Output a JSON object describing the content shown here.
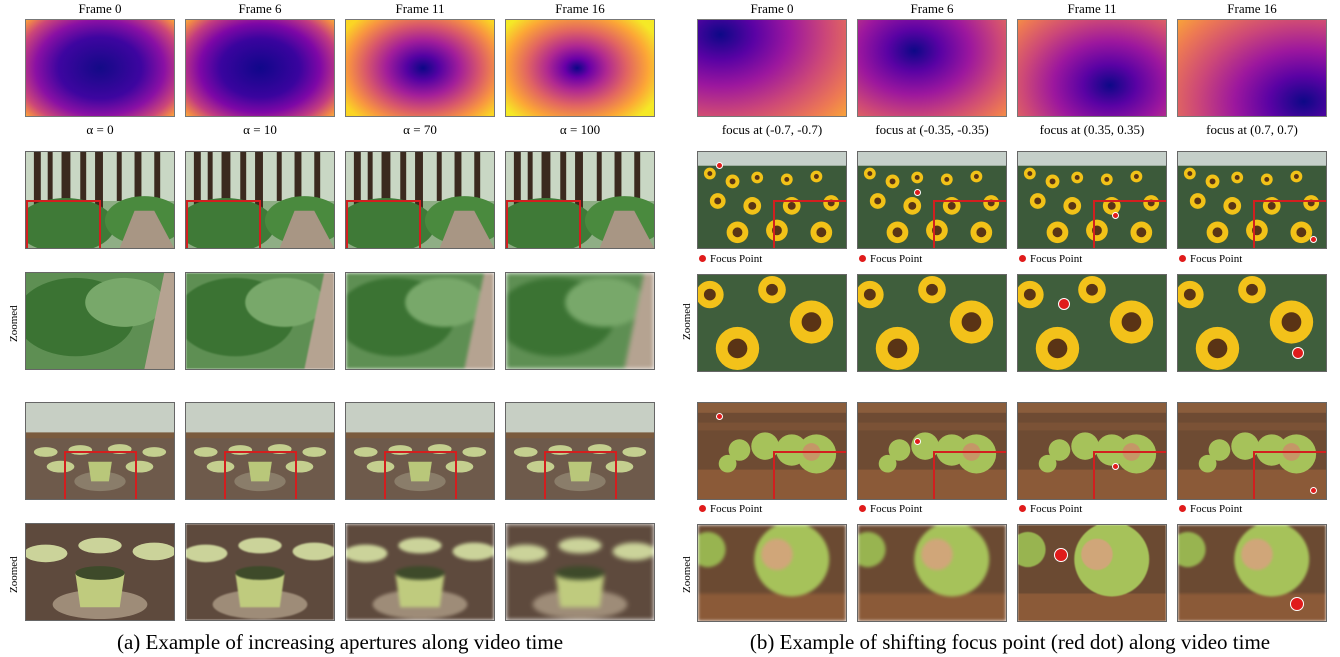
{
  "panel_a": {
    "frame_titles": [
      "Frame 0",
      "Frame 6",
      "Frame 11",
      "Frame 16"
    ],
    "map_captions": [
      "α = 0",
      "α = 10",
      "α = 70",
      "α = 100"
    ],
    "zoomed_label": "Zoomed",
    "caption": "(a) Example of increasing apertures along video time"
  },
  "panel_b": {
    "frame_titles": [
      "Frame 0",
      "Frame 6",
      "Frame 11",
      "Frame 16"
    ],
    "map_captions": [
      "focus at (-0.7, -0.7)",
      "focus at (-0.35, -0.35)",
      "focus at (0.35, 0.35)",
      "focus at (0.7, 0.7)"
    ],
    "legend_label": "Focus Point",
    "zoomed_label": "Zoomed",
    "caption": "(b) Example of shifting focus point (red dot) along video time"
  },
  "colors": {
    "box": "#d21f1f",
    "focus_dot": "#e01b1b"
  },
  "colormap": "plasma"
}
